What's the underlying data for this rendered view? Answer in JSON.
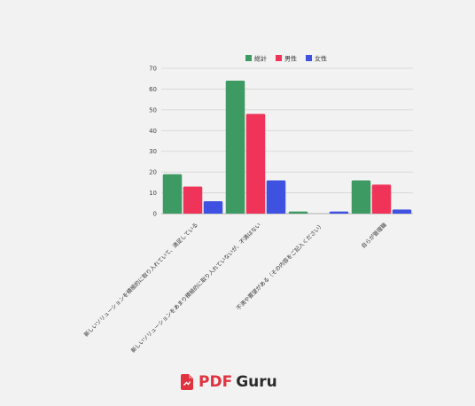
{
  "chart_data": {
    "type": "bar",
    "categories": [
      "新しいソリューションを積極的に取り入れていて、満足している",
      "新しいソリューションをあまり積極的に取り入れていないが、不満はない",
      "不満や要望がある（その内容をご記入ください）",
      "自らが管理職"
    ],
    "series": [
      {
        "name": "総計",
        "color": "#3d9a62",
        "values": [
          19,
          64,
          1,
          16
        ]
      },
      {
        "name": "男性",
        "color": "#f03358",
        "values": [
          13,
          48,
          0,
          14
        ]
      },
      {
        "name": "女性",
        "color": "#3f51e0",
        "values": [
          6,
          16,
          1,
          2
        ]
      }
    ],
    "yticks": [
      0,
      10,
      20,
      30,
      40,
      50,
      60,
      70
    ],
    "ylim": [
      0,
      70
    ],
    "grid": true,
    "legend_position": "top"
  },
  "logo": {
    "pdf": "PDF",
    "guru": "Guru"
  }
}
